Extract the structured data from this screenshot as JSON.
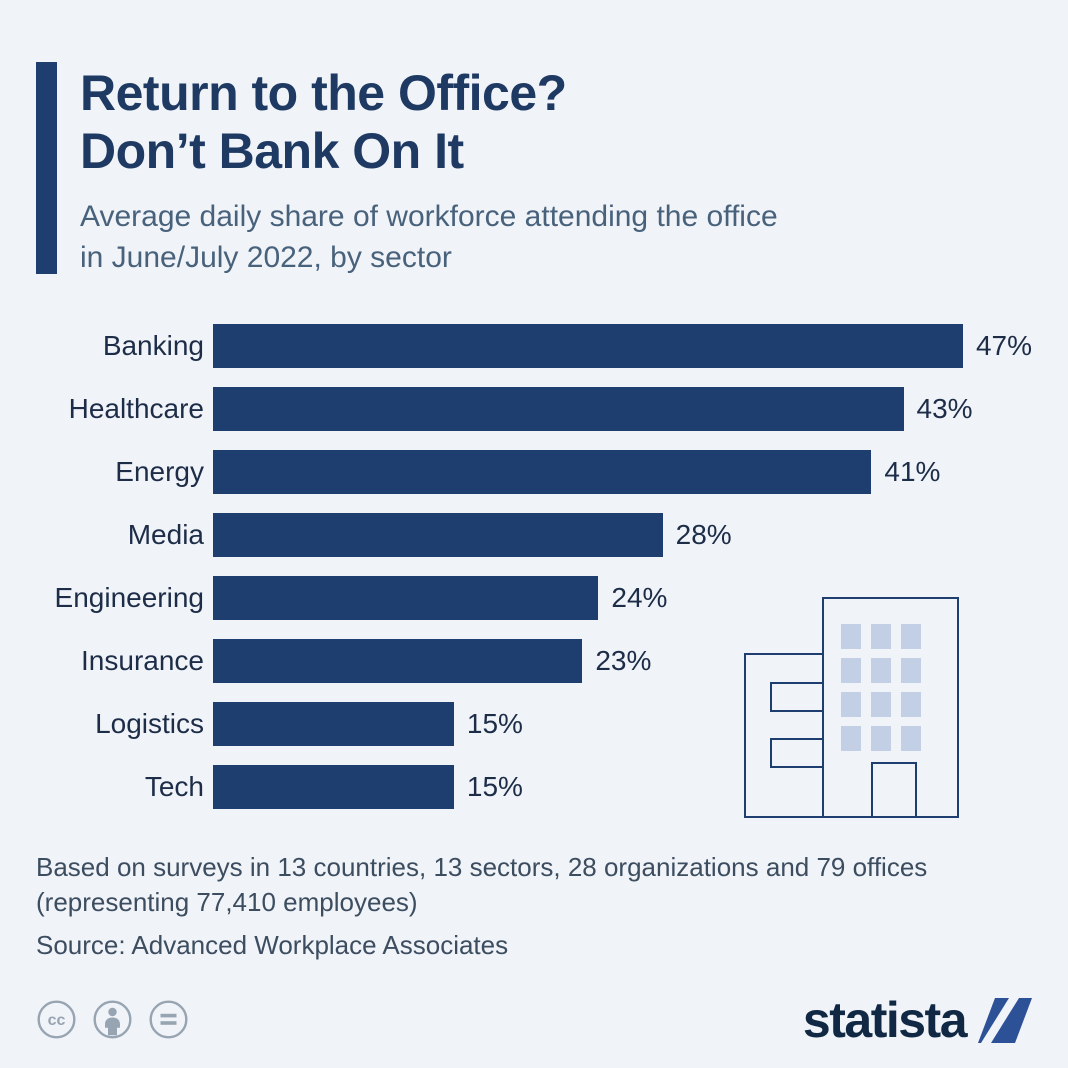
{
  "colors": {
    "background": "#f0f3f8",
    "navy": "#1d3e6f",
    "title": "#1e3a63",
    "subtitle": "#48627c",
    "label_text": "#1d2d48",
    "footer_text": "#3c4d60",
    "building_window": "#c3cfe4",
    "icon_gray": "#97a4b2",
    "logo_text": "#102843",
    "logo_blue": "#2c5197"
  },
  "header": {
    "title_line1": "Return to the Office?",
    "title_line2": "Don’t Bank On It",
    "subtitle_line1": "Average daily share of workforce attending the office",
    "subtitle_line2": "in June/July 2022, by sector"
  },
  "chart_data": {
    "type": "bar",
    "orientation": "horizontal",
    "title": "Return to the Office? Don’t Bank On It",
    "subtitle": "Average daily share of workforce attending the office in June/July 2022, by sector",
    "categories": [
      "Banking",
      "Healthcare",
      "Energy",
      "Media",
      "Engineering",
      "Insurance",
      "Logistics",
      "Tech"
    ],
    "values": [
      47,
      43,
      41,
      28,
      24,
      23,
      15,
      15
    ],
    "value_labels": [
      "47%",
      "43%",
      "41%",
      "28%",
      "24%",
      "23%",
      "15%",
      "15%"
    ],
    "unit": "%",
    "xlabel": "",
    "ylabel": "",
    "xlim": [
      0,
      51
    ],
    "grid": false,
    "legend": false,
    "bar_color": "#1d3e6f"
  },
  "footer": {
    "note_line1": "Based on surveys in 13 countries, 13 sectors, 28 organizations and 79 offices",
    "note_line2": "(representing 77,410 employees)",
    "source": "Source: Advanced Workplace Associates",
    "license": {
      "cc_label": "cc"
    },
    "brand": "statista"
  }
}
